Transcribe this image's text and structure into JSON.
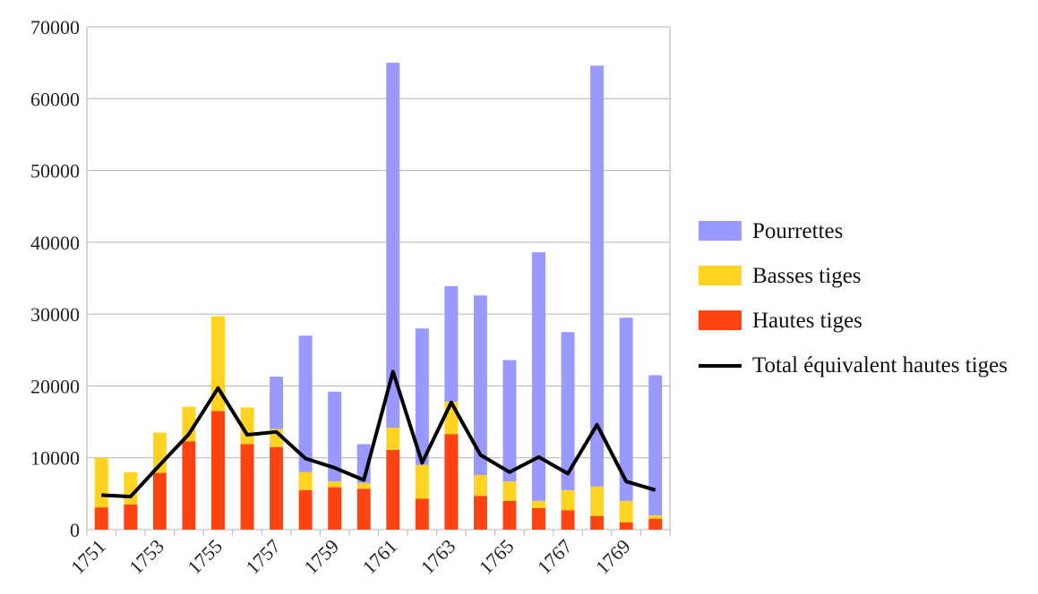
{
  "chart_data": {
    "type": "bar",
    "stacked": true,
    "categories": [
      "1751",
      "1752",
      "1753",
      "1754",
      "1755",
      "1756",
      "1757",
      "1758",
      "1759",
      "1760",
      "1761",
      "1762",
      "1763",
      "1764",
      "1765",
      "1766",
      "1767",
      "1768",
      "1769",
      "1770"
    ],
    "x_tick_labels": [
      "1751",
      "1753",
      "1755",
      "1757",
      "1759",
      "1761",
      "1763",
      "1765",
      "1767",
      "1769"
    ],
    "series": [
      {
        "name": "Hautes tiges",
        "type": "bar",
        "color": "#FF4411",
        "values": [
          3100,
          3500,
          7900,
          12300,
          16500,
          11900,
          11500,
          5500,
          5900,
          5700,
          11100,
          4300,
          13300,
          4700,
          4000,
          3000,
          2700,
          1900,
          1000,
          1500
        ]
      },
      {
        "name": "Basses tiges",
        "type": "bar",
        "color": "#FFD320",
        "values": [
          6900,
          4500,
          5600,
          4800,
          13200,
          5100,
          2500,
          2500,
          800,
          800,
          3100,
          4700,
          4500,
          2900,
          2700,
          1000,
          2800,
          4100,
          3000,
          500
        ]
      },
      {
        "name": "Pourrettes",
        "type": "bar",
        "color": "#9999FF",
        "values": [
          0,
          0,
          0,
          0,
          0,
          0,
          7300,
          19000,
          12500,
          5400,
          50800,
          19000,
          16100,
          25000,
          16900,
          34600,
          22000,
          58600,
          25500,
          19500
        ]
      },
      {
        "name": "Total équivalent hautes tiges",
        "type": "line",
        "color": "#000000",
        "values": [
          4800,
          4600,
          9000,
          13300,
          19700,
          13200,
          13600,
          9900,
          8600,
          6900,
          22000,
          9300,
          17700,
          10400,
          8000,
          10100,
          7800,
          14600,
          6700,
          5500
        ]
      }
    ],
    "y_ticks": [
      "0",
      "10000",
      "20000",
      "30000",
      "40000",
      "50000",
      "60000",
      "70000"
    ],
    "ylim": [
      0,
      70000
    ],
    "grid": true,
    "legend_position": "right"
  }
}
